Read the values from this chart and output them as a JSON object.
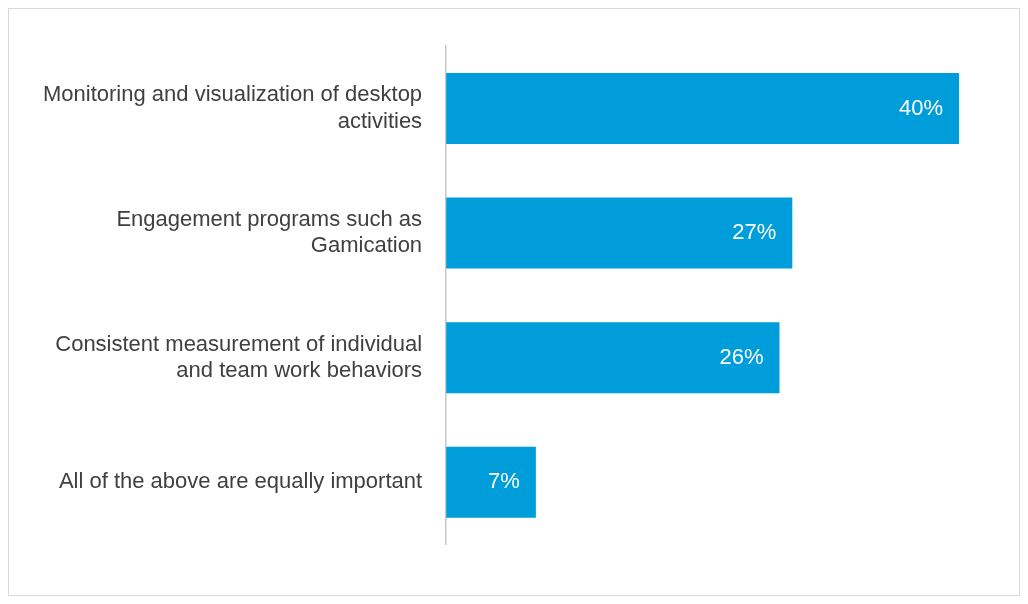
{
  "chart_data": {
    "type": "bar",
    "orientation": "horizontal",
    "categories": [
      "Monitoring and visualization of desktop activities",
      "Engagement programs such as Gamication",
      "Consistent measurement of individual and team work behaviors",
      "All of the above are equally important"
    ],
    "values": [
      40,
      27,
      26,
      7
    ],
    "value_labels": [
      "40%",
      "27%",
      "26%",
      "7%"
    ],
    "color": "#009ddb",
    "tick_labels": "y",
    "grid": false,
    "legend": false
  }
}
